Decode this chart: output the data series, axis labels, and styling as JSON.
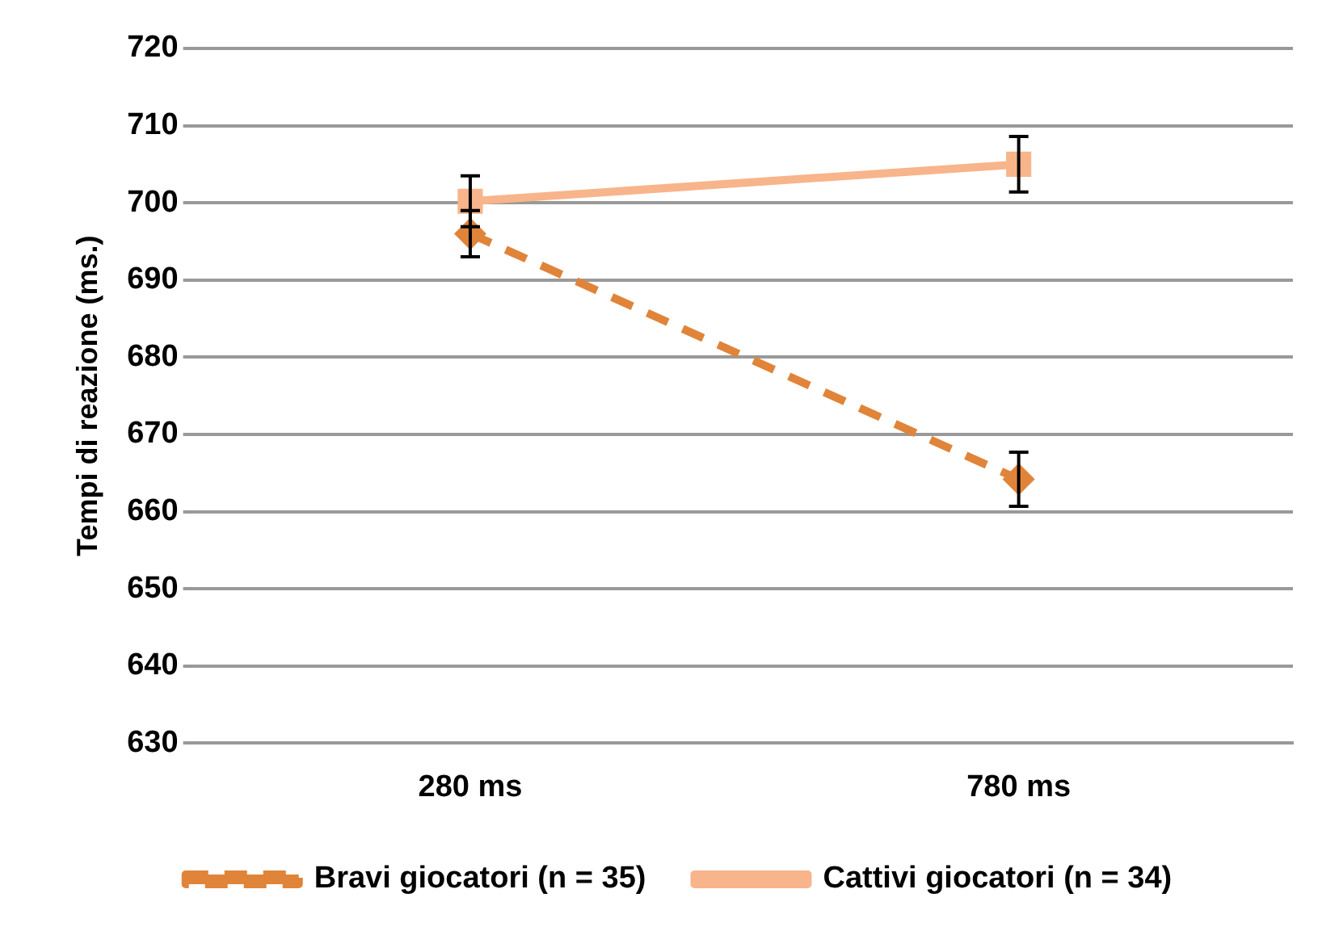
{
  "chart_data": {
    "type": "line",
    "ylabel": "Tempi di reazione (ms.)",
    "categories": [
      "280 ms",
      "780 ms"
    ],
    "series": [
      {
        "name": "Bravi giocatori (n = 35)",
        "color": "#e0843a",
        "values": [
          696,
          664.2
        ],
        "errors": [
          3,
          3.5
        ],
        "marker": "diamond",
        "line_style": "dashed"
      },
      {
        "name": "Cattivi giocatori (n = 34)",
        "color": "#f8b48a",
        "values": [
          700.2,
          705
        ],
        "errors": [
          3.3,
          3.6
        ],
        "marker": "square",
        "line_style": "solid"
      }
    ],
    "ylim": [
      630,
      720
    ],
    "yticks": [
      630,
      640,
      650,
      660,
      670,
      680,
      690,
      700,
      710,
      720
    ],
    "grid": "y",
    "legend": "bottom"
  }
}
